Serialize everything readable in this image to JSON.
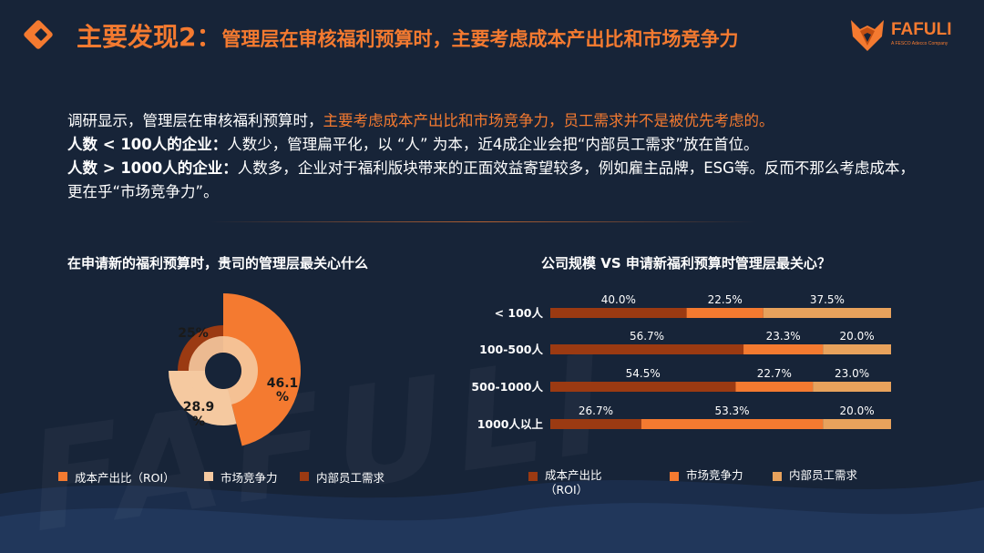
{
  "header": {
    "title_prefix": "主要发现2：",
    "title_main": "管理层在审核福利预算时，主要考虑成本产出比和市场竞争力",
    "logo_name": "FAFULI",
    "logo_tagline": "A FESCO Adecco Company"
  },
  "intro": {
    "line1_plain": "调研显示，管理层在审核福利预算时，",
    "line1_highlight": "主要考虑成本产出比和市场竞争力，员工需求并不是被优先考虑的。",
    "line2_bold": "人数 < 100人的企业：",
    "line2_text": "人数少，管理扁平化，以 “人” 为本，近4成企业会把“内部员工需求”放在首位。",
    "line3_bold": "人数 > 1000人的企业：",
    "line3_text": "人数多，企业对于福利版块带来的正面效益寄望较多，例如雇主品牌，ESG等。反而不那么考虑成本，更在乎“市场竞争力”。"
  },
  "watermark": "FAFULI",
  "colors": {
    "roi": "#f47a30",
    "market": "#f5c9a0",
    "employee": "#9b3a12",
    "bar_roi": "#9b3a12",
    "bar_market": "#f47a30",
    "bar_employee": "#e8a25c"
  },
  "chart_data": [
    {
      "type": "pie",
      "title": "在申请新的福利预算时，贵司的管理层最关心什么",
      "slices": [
        {
          "name": "成本产出比（ROI）",
          "value": 46.1,
          "label": "46.1%"
        },
        {
          "name": "市场竞争力",
          "value": 28.9,
          "label": "28.9%"
        },
        {
          "name": "内部员工需求",
          "value": 25,
          "label": "25%"
        }
      ]
    },
    {
      "type": "bar",
      "stacked": true,
      "orientation": "horizontal",
      "title": "公司规模 VS 申请新福利预算时管理层最关心？",
      "categories": [
        "< 100人",
        "100-500人",
        "500-1000人",
        "1000人以上"
      ],
      "series": [
        {
          "name": "成本产出比（ROI）",
          "values": [
            40.0,
            56.7,
            54.5,
            26.7
          ],
          "labels": [
            "40.0%",
            "56.7%",
            "54.5%",
            "26.7%"
          ]
        },
        {
          "name": "市场竞争力",
          "values": [
            22.5,
            23.3,
            22.7,
            53.3
          ],
          "labels": [
            "22.5%",
            "23.3%",
            "22.7%",
            "53.3%"
          ]
        },
        {
          "name": "内部员工需求",
          "values": [
            37.5,
            20.0,
            23.0,
            20.0
          ],
          "labels": [
            "37.5%",
            "20.0%",
            "23.0%",
            "20.0%"
          ]
        }
      ]
    }
  ]
}
